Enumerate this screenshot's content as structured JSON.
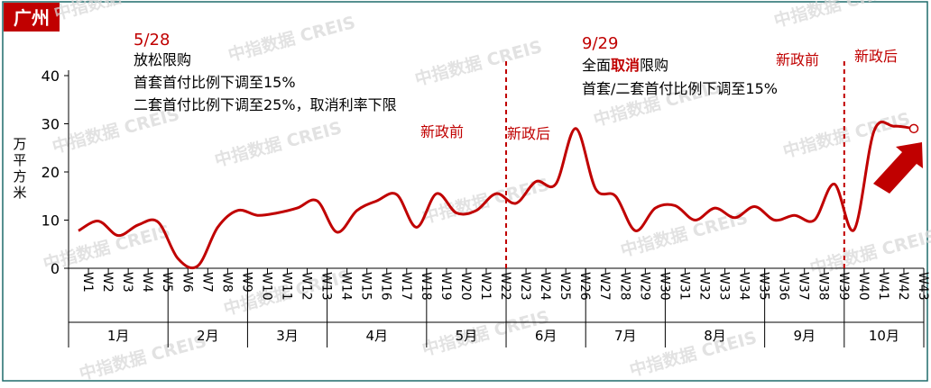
{
  "badge": "广州",
  "watermark": "中指数据 CREIS",
  "y_unit": "万平方米",
  "annotations": {
    "may_date": "5/28",
    "may_line1": "放松限购",
    "may_line2": "首套首付比例下调至15%",
    "may_line3": "二套首付比例下调至25%，取消利率下限",
    "before_1": "新政前",
    "after_1": "新政后",
    "sep_date": "9/29",
    "sep_line1_a": "全面",
    "sep_line1_b": "取消",
    "sep_line1_c": "限购",
    "sep_line2": "首套/二套首付比例下调至15%",
    "before_2": "新政前",
    "after_2": "新政后"
  },
  "colors": {
    "accent": "#c00000",
    "frame": "#1f6b6b",
    "axis": "#000000"
  },
  "chart_data": {
    "type": "line",
    "x": [
      "W1",
      "W2",
      "W3",
      "W4",
      "W5",
      "W6",
      "W7",
      "W8",
      "W9",
      "W10",
      "W11",
      "W12",
      "W13",
      "W14",
      "W15",
      "W16",
      "W17",
      "W18",
      "W19",
      "W20",
      "W21",
      "W22",
      "W23",
      "W24",
      "W25",
      "W26",
      "W27",
      "W28",
      "W29",
      "W30",
      "W31",
      "W32",
      "W33",
      "W34",
      "W35",
      "W36",
      "W37",
      "W38",
      "W39",
      "W40",
      "W41",
      "W42",
      "W43"
    ],
    "values": [
      7.8,
      9.8,
      6.8,
      9.0,
      9.6,
      2.0,
      0.5,
      8.5,
      12.0,
      11.0,
      11.5,
      12.5,
      14.0,
      7.5,
      12.0,
      14.0,
      15.3,
      8.5,
      15.5,
      11.5,
      12.0,
      15.5,
      13.5,
      18.0,
      17.5,
      29.0,
      16.5,
      15.0,
      7.8,
      12.5,
      13.0,
      10.0,
      12.5,
      10.5,
      12.8,
      10.0,
      11.0,
      10.0,
      17.5,
      8.0,
      28.5,
      29.5,
      29.0
    ],
    "months": [
      {
        "label": "1月",
        "start": 0,
        "end": 4
      },
      {
        "label": "2月",
        "start": 5,
        "end": 8
      },
      {
        "label": "3月",
        "start": 9,
        "end": 12
      },
      {
        "label": "4月",
        "start": 13,
        "end": 17
      },
      {
        "label": "5月",
        "start": 18,
        "end": 21
      },
      {
        "label": "6月",
        "start": 22,
        "end": 25
      },
      {
        "label": "7月",
        "start": 26,
        "end": 29
      },
      {
        "label": "8月",
        "start": 30,
        "end": 34
      },
      {
        "label": "9月",
        "start": 35,
        "end": 38
      },
      {
        "label": "10月",
        "start": 39,
        "end": 42
      }
    ],
    "yticks": [
      0,
      10,
      20,
      30,
      40
    ],
    "ylim": [
      0,
      40
    ],
    "policy_lines_after": [
      21,
      38
    ],
    "grid": false
  }
}
